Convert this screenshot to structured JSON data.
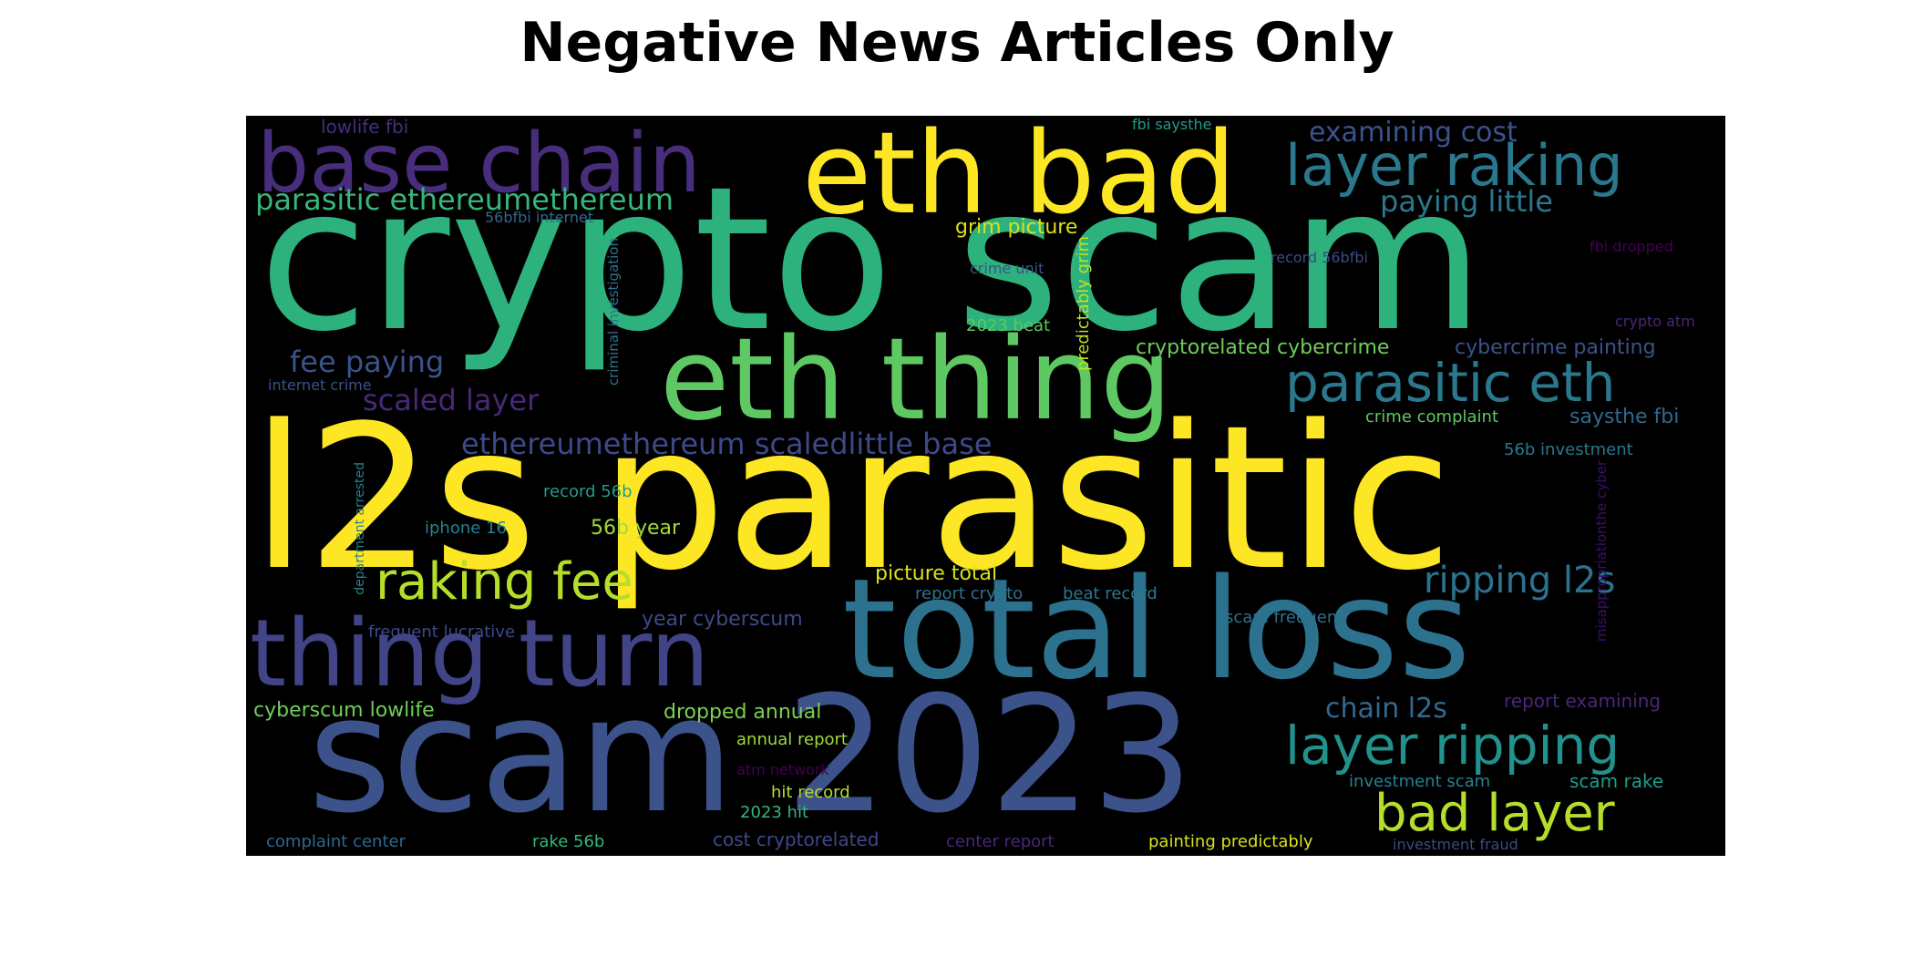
{
  "title": "Negative News Articles Only",
  "colors": {
    "yellow": "#fde725",
    "lime": "#b5de2b",
    "green_light": "#6ece58",
    "green": "#35b779",
    "teal_green": "#1f9e89",
    "teal": "#26828e",
    "blue_teal": "#31688e",
    "blue": "#3e4989",
    "indigo": "#482878",
    "purple": "#440154",
    "background": "#000000"
  },
  "words": [
    {
      "text": "crypto scam",
      "color": "#2db27d",
      "weight": 1.0
    },
    {
      "text": "l2s parasitic",
      "color": "#fde725",
      "weight": 1.0
    },
    {
      "text": "total loss",
      "color": "#2c728e",
      "weight": 0.8
    },
    {
      "text": "scam 2023",
      "color": "#3b528b",
      "weight": 0.8
    },
    {
      "text": "eth bad",
      "color": "#fde725",
      "weight": 0.6
    },
    {
      "text": "eth thing",
      "color": "#5ec962",
      "weight": 0.6
    },
    {
      "text": "base chain",
      "color": "#472d7b",
      "weight": 0.5
    },
    {
      "text": "thing turn",
      "color": "#414487",
      "weight": 0.5
    },
    {
      "text": "layer raking",
      "color": "#2a788e",
      "weight": 0.35
    },
    {
      "text": "parasitic eth",
      "color": "#2a788e",
      "weight": 0.35
    },
    {
      "text": "raking fee",
      "color": "#b5de2b",
      "weight": 0.35
    },
    {
      "text": "layer ripping",
      "color": "#21918c",
      "weight": 0.35
    },
    {
      "text": "bad layer",
      "color": "#b5de2b",
      "weight": 0.35
    },
    {
      "text": "ripping l2s",
      "color": "#2c728e",
      "weight": 0.25
    },
    {
      "text": "parasitic ethereumethereum",
      "color": "#35b779",
      "weight": 0.2
    },
    {
      "text": "paying little",
      "color": "#2a788e",
      "weight": 0.2
    },
    {
      "text": "examining cost",
      "color": "#3b528b",
      "weight": 0.2
    },
    {
      "text": "fee paying",
      "color": "#3b528b",
      "weight": 0.2
    },
    {
      "text": "scaled layer",
      "color": "#482878",
      "weight": 0.2
    },
    {
      "text": "ethereumethereum scaledlittle base",
      "color": "#3e4989",
      "weight": 0.2
    },
    {
      "text": "chain l2s",
      "color": "#31688e",
      "weight": 0.2
    },
    {
      "text": "cryptorelated cybercrime",
      "color": "#6ece58",
      "weight": 0.15
    },
    {
      "text": "cybercrime painting",
      "color": "#3b528b",
      "weight": 0.15
    },
    {
      "text": "saysthe fbi",
      "color": "#31688e",
      "weight": 0.15
    },
    {
      "text": "56b year",
      "color": "#a0da39",
      "weight": 0.15
    },
    {
      "text": "picture total",
      "color": "#d8e219",
      "weight": 0.15
    },
    {
      "text": "year cyberscum",
      "color": "#3e4989",
      "weight": 0.15
    },
    {
      "text": "cyberscum lowlife",
      "color": "#6ece58",
      "weight": 0.15
    },
    {
      "text": "dropped annual",
      "color": "#7ad151",
      "weight": 0.15
    },
    {
      "text": "grim picture",
      "color": "#d8e219",
      "weight": 0.15
    },
    {
      "text": "report examining",
      "color": "#482878",
      "weight": 0.12
    },
    {
      "text": "scam rake",
      "color": "#1f9e89",
      "weight": 0.12
    },
    {
      "text": "annual report",
      "color": "#9fda3a",
      "weight": 0.12
    },
    {
      "text": "hit record",
      "color": "#b5de2b",
      "weight": 0.12
    },
    {
      "text": "2023 hit",
      "color": "#35b779",
      "weight": 0.12
    },
    {
      "text": "cost cryptorelated",
      "color": "#3e4989",
      "weight": 0.12
    },
    {
      "text": "painting predictably",
      "color": "#d8e219",
      "weight": 0.12
    },
    {
      "text": "complaint center",
      "color": "#31688e",
      "weight": 0.12
    },
    {
      "text": "rake 56b",
      "color": "#35b779",
      "weight": 0.12
    },
    {
      "text": "center report",
      "color": "#482878",
      "weight": 0.12
    },
    {
      "text": "investment fraud",
      "color": "#3e4989",
      "weight": 0.1
    },
    {
      "text": "investment scam",
      "color": "#26828e",
      "weight": 0.1
    },
    {
      "text": "atm network",
      "color": "#440154",
      "weight": 0.1
    },
    {
      "text": "56b investment",
      "color": "#2a788e",
      "weight": 0.1
    },
    {
      "text": "crime complaint",
      "color": "#5ec962",
      "weight": 0.1
    },
    {
      "text": "record 56b",
      "color": "#1f9e89",
      "weight": 0.1
    },
    {
      "text": "iphone 16",
      "color": "#26828e",
      "weight": 0.1
    },
    {
      "text": "frequent lucrative",
      "color": "#3e4989",
      "weight": 0.1
    },
    {
      "text": "report crypto",
      "color": "#2c728e",
      "weight": 0.1
    },
    {
      "text": "beat record",
      "color": "#2a788e",
      "weight": 0.1
    },
    {
      "text": "scam frequent",
      "color": "#2c728e",
      "weight": 0.1
    },
    {
      "text": "internet crime",
      "color": "#3b528b",
      "weight": 0.1
    },
    {
      "text": "2023 beat",
      "color": "#5ec962",
      "weight": 0.1
    },
    {
      "text": "crime unit",
      "color": "#3b528b",
      "weight": 0.08
    },
    {
      "text": "record 56bfbi",
      "color": "#3e4989",
      "weight": 0.08
    },
    {
      "text": "fbi dropped",
      "color": "#440154",
      "weight": 0.08
    },
    {
      "text": "crypto atm",
      "color": "#482878",
      "weight": 0.08
    },
    {
      "text": "lowlife fbi",
      "color": "#472d7b",
      "weight": 0.1
    },
    {
      "text": "fbi saysthe",
      "color": "#1f9e89",
      "weight": 0.08
    },
    {
      "text": "56bfbi internet",
      "color": "#31688e",
      "weight": 0.08
    },
    {
      "text": "criminal investigation",
      "color": "#2c728e",
      "weight": 0.08
    },
    {
      "text": "predictably grim",
      "color": "#c2df23",
      "weight": 0.1
    },
    {
      "text": "department arrested",
      "color": "#26828e",
      "weight": 0.08
    },
    {
      "text": "misappropriationthe cyber",
      "color": "#3b0f70",
      "weight": 0.08
    }
  ]
}
